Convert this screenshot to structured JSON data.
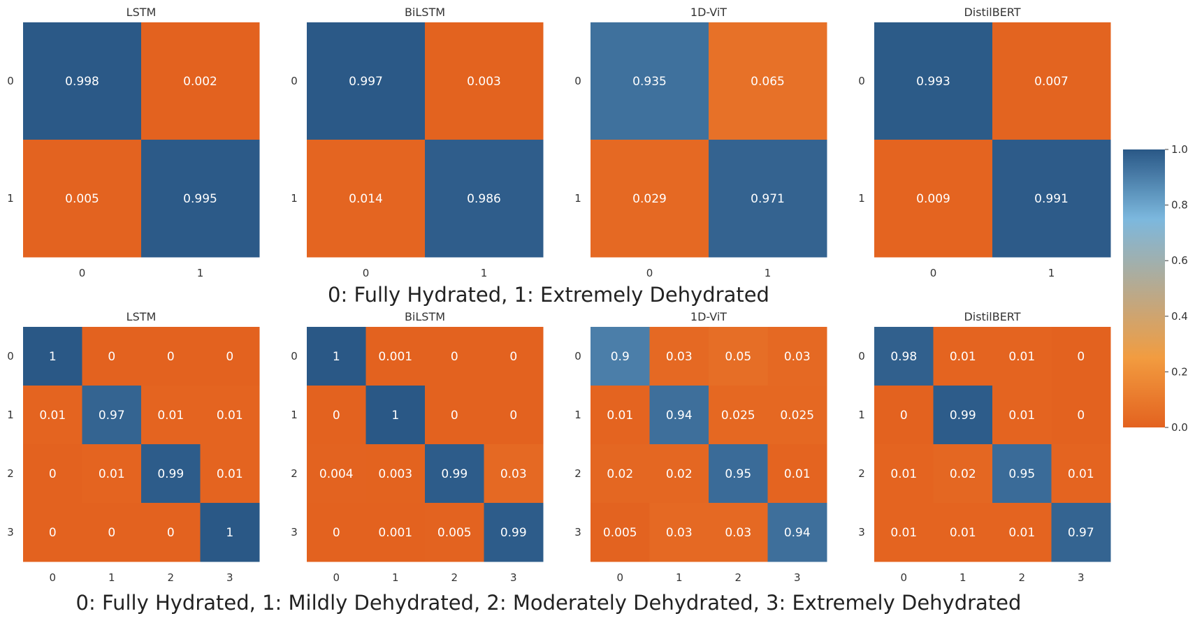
{
  "figure": {
    "colormap": [
      "#e3621f",
      "#f29c40",
      "#7cb8de",
      "#2a5886"
    ],
    "text_colors": {
      "cell": "#ffffff",
      "tick": "#333333",
      "caption": "#222222"
    }
  },
  "chart_data": [
    {
      "type": "heatmap",
      "title": "LSTM",
      "row_labels": [
        "0",
        "1"
      ],
      "col_labels": [
        "0",
        "1"
      ],
      "values": [
        [
          0.998,
          0.002
        ],
        [
          0.005,
          0.995
        ]
      ],
      "cell_labels": [
        [
          "0.998",
          "0.002"
        ],
        [
          "0.005",
          "0.995"
        ]
      ],
      "vmin": 0,
      "vmax": 1
    },
    {
      "type": "heatmap",
      "title": "BiLSTM",
      "row_labels": [
        "0",
        "1"
      ],
      "col_labels": [
        "0",
        "1"
      ],
      "values": [
        [
          0.997,
          0.003
        ],
        [
          0.014,
          0.986
        ]
      ],
      "cell_labels": [
        [
          "0.997",
          "0.003"
        ],
        [
          "0.014",
          "0.986"
        ]
      ],
      "vmin": 0,
      "vmax": 1
    },
    {
      "type": "heatmap",
      "title": "1D-ViT",
      "row_labels": [
        "0",
        "1"
      ],
      "col_labels": [
        "0",
        "1"
      ],
      "values": [
        [
          0.935,
          0.065
        ],
        [
          0.029,
          0.971
        ]
      ],
      "cell_labels": [
        [
          "0.935",
          "0.065"
        ],
        [
          "0.029",
          "0.971"
        ]
      ],
      "vmin": 0,
      "vmax": 1
    },
    {
      "type": "heatmap",
      "title": "DistilBERT",
      "row_labels": [
        "0",
        "1"
      ],
      "col_labels": [
        "0",
        "1"
      ],
      "values": [
        [
          0.993,
          0.007
        ],
        [
          0.009,
          0.991
        ]
      ],
      "cell_labels": [
        [
          "0.993",
          "0.007"
        ],
        [
          "0.009",
          "0.991"
        ]
      ],
      "vmin": 0,
      "vmax": 1
    },
    {
      "type": "heatmap",
      "title": "LSTM",
      "row_labels": [
        "0",
        "1",
        "2",
        "3"
      ],
      "col_labels": [
        "0",
        "1",
        "2",
        "3"
      ],
      "values": [
        [
          1,
          0,
          0,
          0
        ],
        [
          0.01,
          0.97,
          0.01,
          0.01
        ],
        [
          0,
          0.01,
          0.99,
          0.01
        ],
        [
          0,
          0,
          0,
          1
        ]
      ],
      "cell_labels": [
        [
          "1",
          "0",
          "0",
          "0"
        ],
        [
          "0.01",
          "0.97",
          "0.01",
          "0.01"
        ],
        [
          "0",
          "0.01",
          "0.99",
          "0.01"
        ],
        [
          "0",
          "0",
          "0",
          "1"
        ]
      ],
      "vmin": 0,
      "vmax": 1
    },
    {
      "type": "heatmap",
      "title": "BiLSTM",
      "row_labels": [
        "0",
        "1",
        "2",
        "3"
      ],
      "col_labels": [
        "0",
        "1",
        "2",
        "3"
      ],
      "values": [
        [
          1,
          0.001,
          0,
          0
        ],
        [
          0,
          1,
          0,
          0
        ],
        [
          0.004,
          0.003,
          0.99,
          0.03
        ],
        [
          0,
          0.001,
          0.005,
          0.99
        ]
      ],
      "cell_labels": [
        [
          "1",
          "0.001",
          "0",
          "0"
        ],
        [
          "0",
          "1",
          "0",
          "0"
        ],
        [
          "0.004",
          "0.003",
          "0.99",
          "0.03"
        ],
        [
          "0",
          "0.001",
          "0.005",
          "0.99"
        ]
      ],
      "vmin": 0,
      "vmax": 1
    },
    {
      "type": "heatmap",
      "title": "1D-ViT",
      "row_labels": [
        "0",
        "1",
        "2",
        "3"
      ],
      "col_labels": [
        "0",
        "1",
        "2",
        "3"
      ],
      "values": [
        [
          0.9,
          0.03,
          0.05,
          0.03
        ],
        [
          0.01,
          0.94,
          0.025,
          0.025
        ],
        [
          0.02,
          0.02,
          0.95,
          0.01
        ],
        [
          0.005,
          0.03,
          0.03,
          0.94
        ]
      ],
      "cell_labels": [
        [
          "0.9",
          "0.03",
          "0.05",
          "0.03"
        ],
        [
          "0.01",
          "0.94",
          "0.025",
          "0.025"
        ],
        [
          "0.02",
          "0.02",
          "0.95",
          "0.01"
        ],
        [
          "0.005",
          "0.03",
          "0.03",
          "0.94"
        ]
      ],
      "vmin": 0,
      "vmax": 1
    },
    {
      "type": "heatmap",
      "title": "DistilBERT",
      "row_labels": [
        "0",
        "1",
        "2",
        "3"
      ],
      "col_labels": [
        "0",
        "1",
        "2",
        "3"
      ],
      "values": [
        [
          0.98,
          0.01,
          0.01,
          0
        ],
        [
          0,
          0.99,
          0.01,
          0
        ],
        [
          0.01,
          0.02,
          0.95,
          0.01
        ],
        [
          0.01,
          0.01,
          0.01,
          0.97
        ]
      ],
      "cell_labels": [
        [
          "0.98",
          "0.01",
          "0.01",
          "0"
        ],
        [
          "0",
          "0.99",
          "0.01",
          "0"
        ],
        [
          "0.01",
          "0.02",
          "0.95",
          "0.01"
        ],
        [
          "0.01",
          "0.01",
          "0.01",
          "0.97"
        ]
      ],
      "vmin": 0,
      "vmax": 1
    }
  ],
  "captions": [
    "0: Fully Hydrated, 1: Extremely Dehydrated",
    "0: Fully Hydrated, 1: Mildly Dehydrated, 2: Moderately Dehydrated, 3: Extremely Dehydrated"
  ],
  "colorbar": {
    "ticks": [
      1.0,
      0.8,
      0.6,
      0.4,
      0.2,
      0.0
    ],
    "tick_labels": [
      "1.0",
      "0.8",
      "0.6",
      "0.4",
      "0.2",
      "0.0"
    ],
    "vmin": 0,
    "vmax": 1
  }
}
